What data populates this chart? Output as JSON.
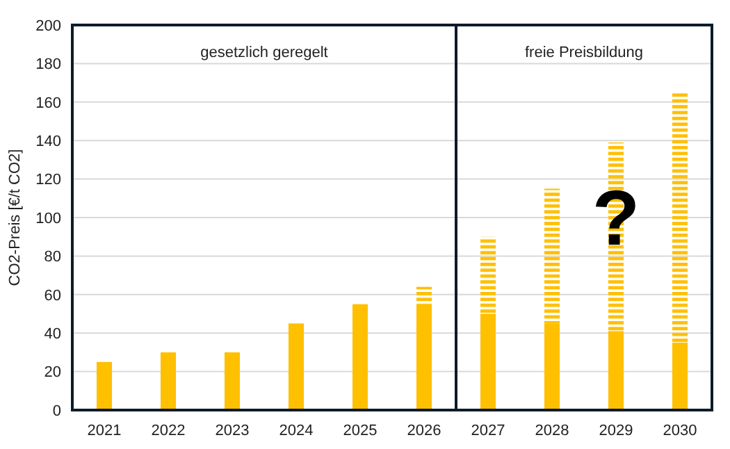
{
  "chart_data": {
    "type": "bar",
    "stacked": true,
    "ylabel": "CO2-Preis [€/t CO2]",
    "categories": [
      "2021",
      "2022",
      "2023",
      "2024",
      "2025",
      "2026",
      "2027",
      "2028",
      "2029",
      "2030"
    ],
    "series": [
      {
        "color": "#ffc000",
        "values": [
          25,
          30,
          30,
          45,
          55,
          55,
          50,
          45,
          41,
          35
        ]
      },
      {
        "color": "#ffc000",
        "line_style": "dashed",
        "values": [
          null,
          null,
          null,
          null,
          null,
          9,
          40,
          70,
          98,
          130
        ]
      }
    ],
    "ylim": [
      0,
      200
    ],
    "yticks": [
      0,
      20,
      40,
      60,
      80,
      100,
      120,
      140,
      160,
      180,
      200
    ],
    "grid": "y",
    "ref_lines": [
      {
        "axis": "x",
        "value": "2026",
        "color": "#0d1b2a"
      }
    ],
    "annotations": [
      "gesetzlich geregelt",
      "freie Preisbildung",
      "?"
    ]
  }
}
